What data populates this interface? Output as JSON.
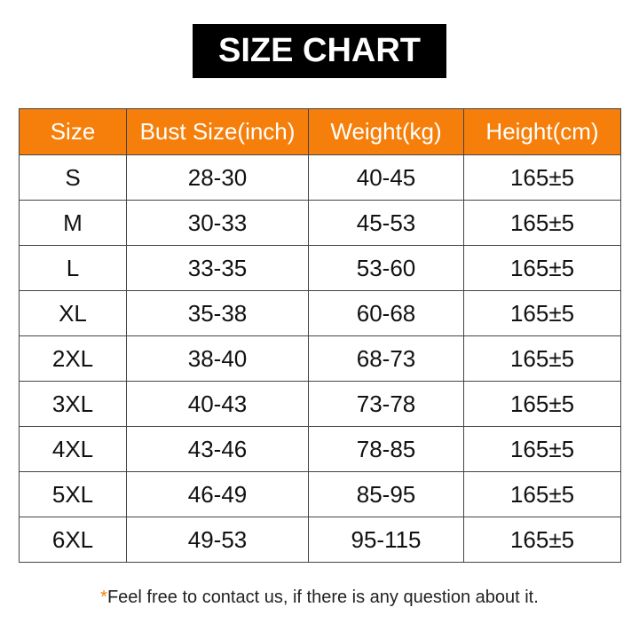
{
  "title": "SIZE CHART",
  "table": {
    "headers": [
      "Size",
      "Bust Size(inch)",
      "Weight(kg)",
      "Height(cm)"
    ],
    "rows": [
      [
        "S",
        "28-30",
        "40-45",
        "165±5"
      ],
      [
        "M",
        "30-33",
        "45-53",
        "165±5"
      ],
      [
        "L",
        "33-35",
        "53-60",
        "165±5"
      ],
      [
        "XL",
        "35-38",
        "60-68",
        "165±5"
      ],
      [
        "2XL",
        "38-40",
        "68-73",
        "165±5"
      ],
      [
        "3XL",
        "40-43",
        "73-78",
        "165±5"
      ],
      [
        "4XL",
        "43-46",
        "78-85",
        "165±5"
      ],
      [
        "5XL",
        "46-49",
        "85-95",
        "165±5"
      ],
      [
        "6XL",
        "49-53",
        "95-115",
        "165±5"
      ]
    ]
  },
  "footnote": {
    "asterisk": "*",
    "text": "Feel free to contact us, if there is any question about it."
  },
  "colors": {
    "header_bg": "#f57f0a",
    "title_bg": "#000000"
  }
}
